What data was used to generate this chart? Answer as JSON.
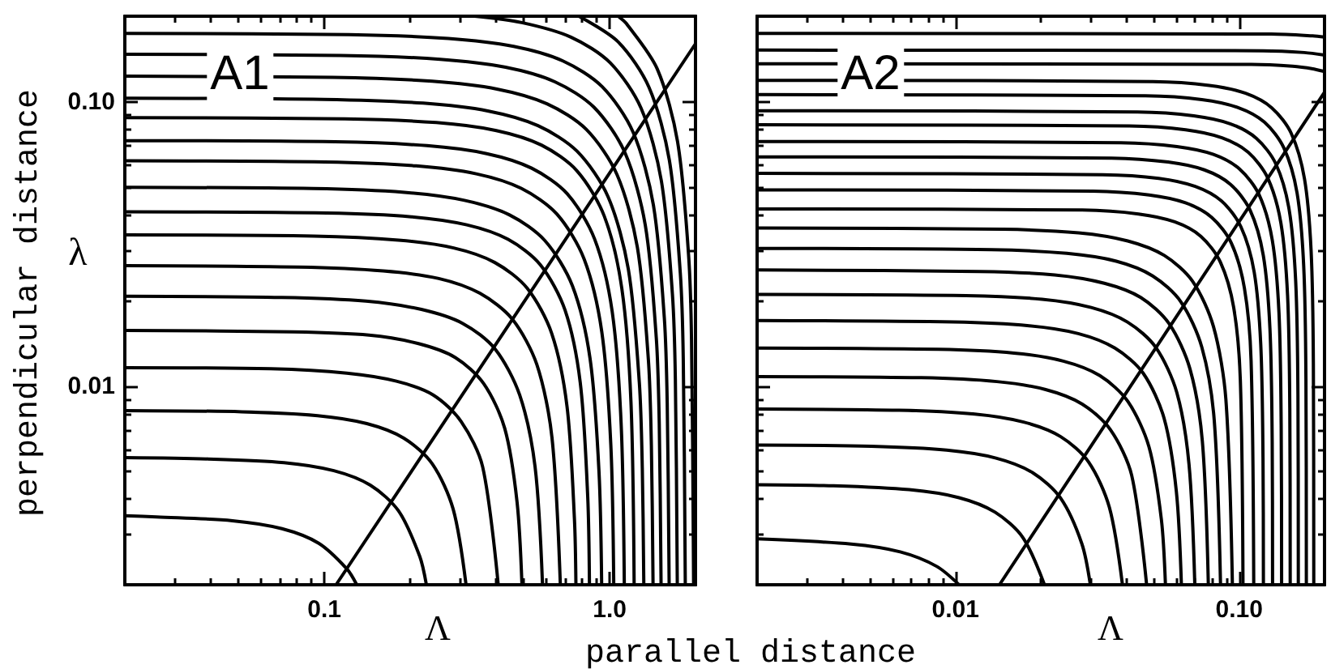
{
  "chart_data": [
    {
      "type": "line",
      "xlabel": "Λ",
      "ylabel": "λ",
      "annotations": [
        "A1",
        "perpendicular distance"
      ],
      "log": "xy",
      "marker": "none",
      "xlim": [
        0.02,
        2
      ],
      "ylim": [
        0.002,
        0.2
      ],
      "xticks": [
        {
          "value": 0.03,
          "label": null
        },
        {
          "value": 0.04,
          "label": null
        },
        {
          "value": 0.05,
          "label": null
        },
        {
          "value": 0.06,
          "label": null
        },
        {
          "value": 0.07,
          "label": null
        },
        {
          "value": 0.08,
          "label": null
        },
        {
          "value": 0.09,
          "label": null
        },
        {
          "value": 0.1,
          "label": "0.1"
        },
        {
          "value": 0.2,
          "label": null
        },
        {
          "value": 0.3,
          "label": null
        },
        {
          "value": 0.4,
          "label": null
        },
        {
          "value": 0.5,
          "label": null
        },
        {
          "value": 0.6,
          "label": null
        },
        {
          "value": 0.7,
          "label": null
        },
        {
          "value": 0.8,
          "label": null
        },
        {
          "value": 0.9,
          "label": null
        },
        {
          "value": 1,
          "label": "1.0"
        }
      ],
      "yticks": [
        {
          "value": 0.003,
          "label": null
        },
        {
          "value": 0.004,
          "label": null
        },
        {
          "value": 0.005,
          "label": null
        },
        {
          "value": 0.006,
          "label": null
        },
        {
          "value": 0.007,
          "label": null
        },
        {
          "value": 0.008,
          "label": null
        },
        {
          "value": 0.009,
          "label": null
        },
        {
          "value": 0.01,
          "label": "0.01"
        },
        {
          "value": 0.02,
          "label": null
        },
        {
          "value": 0.03,
          "label": null
        },
        {
          "value": 0.04,
          "label": null
        },
        {
          "value": 0.05,
          "label": null
        },
        {
          "value": 0.06,
          "label": null
        },
        {
          "value": 0.07,
          "label": null
        },
        {
          "value": 0.08,
          "label": null
        },
        {
          "value": 0.09,
          "label": null
        },
        {
          "value": 0.1,
          "label": "0.10"
        }
      ],
      "series": [
        {
          "color": "#000000",
          "x": [
            0.11,
            2
          ],
          "values": [
            0.002,
            0.16
          ]
        },
        {
          "color": "#000000",
          "x": [
            1.07,
            1.145,
            1.469,
            1.73,
            1.891,
            1.937,
            1.97
          ],
          "values": [
            0.2,
            0.1885,
            0.1305,
            0.0725,
            0.029,
            0.0145,
            0.002
          ]
        },
        {
          "color": "#000000",
          "x": [
            0.78,
            1.071,
            1.374,
            1.619,
            1.769,
            1.812,
            1.842
          ],
          "values": [
            0.2,
            0.1625,
            0.1125,
            0.0625,
            0.025,
            0.0125,
            0.002
          ]
        },
        {
          "color": "#000000",
          "x": [
            0.337,
            0.492,
            0.732,
            1.004,
            1.289,
            1.518,
            1.66,
            1.7,
            1.727
          ],
          "values": [
            0.2,
            0.1899,
            0.1688,
            0.1372,
            0.095,
            0.0528,
            0.0211,
            0.0106,
            0.002
          ]
        },
        {
          "color": "#000000",
          "x": [
            0.02,
            0.122,
            0.272,
            0.461,
            0.686,
            0.941,
            1.208,
            1.423,
            1.555,
            1.592,
            1.617
          ],
          "values": [
            0.174,
            0.1723,
            0.167,
            0.1566,
            0.1392,
            0.1131,
            0.0783,
            0.0435,
            0.0174,
            0.0087,
            0.002
          ]
        },
        {
          "color": "#000000",
          "x": [
            0.02,
            0.114,
            0.255,
            0.432,
            0.643,
            0.882,
            1.132,
            1.334,
            1.458,
            1.493,
            1.515
          ],
          "values": [
            0.147,
            0.1455,
            0.1411,
            0.1323,
            0.1176,
            0.0956,
            0.0662,
            0.0368,
            0.0147,
            0.00735,
            0.002
          ]
        },
        {
          "color": "#000000",
          "x": [
            0.02,
            0.107,
            0.239,
            0.406,
            0.603,
            0.828,
            1.062,
            1.251,
            1.368,
            1.401,
            1.42
          ],
          "values": [
            0.123,
            0.1218,
            0.1181,
            0.1107,
            0.0984,
            0.08,
            0.0554,
            0.0308,
            0.0123,
            0.00615,
            0.002
          ]
        },
        {
          "color": "#000000",
          "x": [
            0.02,
            0.0996,
            0.222,
            0.377,
            0.561,
            0.769,
            0.987,
            1.163,
            1.271,
            1.302,
            1.318
          ],
          "values": [
            0.103,
            0.102,
            0.0989,
            0.0927,
            0.0824,
            0.067,
            0.0464,
            0.0258,
            0.0103,
            0.00515,
            0.002
          ]
        },
        {
          "color": "#000000",
          "x": [
            0.02,
            0.118,
            0.247,
            0.401,
            0.577,
            0.768,
            0.958,
            1.104,
            1.188,
            1.219
          ],
          "values": [
            0.088,
            0.0871,
            0.0845,
            0.0792,
            0.0704,
            0.0572,
            0.0396,
            0.022,
            0.0088,
            0.002
          ]
        },
        {
          "color": "#000000",
          "x": [
            0.02,
            0.109,
            0.229,
            0.371,
            0.533,
            0.71,
            0.886,
            1.021,
            1.098,
            1.126
          ],
          "values": [
            0.073,
            0.0723,
            0.0701,
            0.0657,
            0.0584,
            0.0475,
            0.0329,
            0.0183,
            0.0073,
            0.002
          ]
        },
        {
          "color": "#000000",
          "x": [
            0.02,
            0.1005,
            0.21,
            0.341,
            0.49,
            0.653,
            0.815,
            0.939,
            1.01,
            1.034
          ],
          "values": [
            0.062,
            0.0614,
            0.0595,
            0.0558,
            0.0496,
            0.0403,
            0.0279,
            0.0155,
            0.0062,
            0.002
          ]
        },
        {
          "color": "#000000",
          "x": [
            0.02,
            0.0914,
            0.191,
            0.31,
            0.446,
            0.593,
            0.741,
            0.854,
            0.918,
            0.938
          ],
          "values": [
            0.05,
            0.0495,
            0.048,
            0.045,
            0.04,
            0.0325,
            0.0225,
            0.0125,
            0.005,
            0.002
          ]
        },
        {
          "color": "#000000",
          "x": [
            0.02,
            0.102,
            0.202,
            0.316,
            0.441,
            0.572,
            0.698,
            0.789,
            0.838,
            0.85
          ],
          "values": [
            0.041,
            0.0406,
            0.0394,
            0.0369,
            0.0328,
            0.0267,
            0.0185,
            0.0103,
            0.0041,
            0.002
          ]
        },
        {
          "color": "#000000",
          "x": [
            0.02,
            0.0918,
            0.182,
            0.284,
            0.396,
            0.514,
            0.627,
            0.709,
            0.753,
            0.762
          ],
          "values": [
            0.034,
            0.0337,
            0.0326,
            0.0306,
            0.0272,
            0.0221,
            0.0153,
            0.0085,
            0.0034,
            0.002
          ]
        },
        {
          "color": "#000000",
          "x": [
            0.02,
            0.0813,
            0.161,
            0.252,
            0.351,
            0.456,
            0.556,
            0.628,
            0.672
          ],
          "values": [
            0.0265,
            0.0262,
            0.0254,
            0.0239,
            0.0212,
            0.0172,
            0.0119,
            0.0066,
            0.002
          ]
        },
        {
          "color": "#000000",
          "x": [
            0.02,
            0.0709,
            0.14,
            0.219,
            0.306,
            0.397,
            0.484,
            0.548,
            0.582
          ],
          "values": [
            0.0207,
            0.0205,
            0.0199,
            0.0186,
            0.0166,
            0.0135,
            0.0093,
            0.0052,
            0.002
          ]
        },
        {
          "color": "#000000",
          "x": [
            0.02,
            0.0778,
            0.1435,
            0.214,
            0.288,
            0.362,
            0.429,
            0.474,
            0.493
          ],
          "values": [
            0.0157,
            0.0155,
            0.0151,
            0.0141,
            0.0126,
            0.0102,
            0.0071,
            0.0039,
            0.002
          ]
        },
        {
          "color": "#000000",
          "x": [
            0.02,
            0.065,
            0.12,
            0.179,
            0.241,
            0.302,
            0.359,
            0.407
          ],
          "values": [
            0.0116,
            0.0115,
            0.0111,
            0.0104,
            0.0093,
            0.0075,
            0.0052,
            0.002
          ]
        },
        {
          "color": "#000000",
          "x": [
            0.02,
            0.0514,
            0.0948,
            0.141,
            0.19,
            0.239,
            0.283,
            0.314
          ],
          "values": [
            0.0082,
            0.00812,
            0.00787,
            0.00738,
            0.00656,
            0.00533,
            0.00369,
            0.002
          ]
        },
        {
          "color": "#000000",
          "x": [
            0.02,
            0.0392,
            0.0723,
            0.108,
            0.145,
            0.182,
            0.216,
            0.228
          ],
          "values": [
            0.0056,
            0.00554,
            0.00538,
            0.00504,
            0.00448,
            0.00364,
            0.00252,
            0.002
          ]
        },
        {
          "color": "#000000",
          "x": [
            0.02,
            0.0258,
            0.0477,
            0.0711,
            0.0956,
            0.12,
            0.13
          ],
          "values": [
            0.0035,
            0.003465,
            0.00336,
            0.00315,
            0.0028,
            0.002275,
            0.002
          ]
        }
      ]
    },
    {
      "type": "line",
      "xlabel": "Λ",
      "annotations": [
        "A2",
        "parallel distance"
      ],
      "log": "xy",
      "marker": "none",
      "tick_labels": "x",
      "xlim": [
        0.002,
        0.2
      ],
      "ylim": [
        0.002,
        0.2
      ],
      "xticks": [
        {
          "value": 0.003,
          "label": null
        },
        {
          "value": 0.004,
          "label": null
        },
        {
          "value": 0.005,
          "label": null
        },
        {
          "value": 0.006,
          "label": null
        },
        {
          "value": 0.007,
          "label": null
        },
        {
          "value": 0.008,
          "label": null
        },
        {
          "value": 0.009,
          "label": null
        },
        {
          "value": 0.01,
          "label": "0.01"
        },
        {
          "value": 0.02,
          "label": null
        },
        {
          "value": 0.03,
          "label": null
        },
        {
          "value": 0.04,
          "label": null
        },
        {
          "value": 0.05,
          "label": null
        },
        {
          "value": 0.06,
          "label": null
        },
        {
          "value": 0.07,
          "label": null
        },
        {
          "value": 0.08,
          "label": null
        },
        {
          "value": 0.09,
          "label": null
        },
        {
          "value": 0.1,
          "label": "0.10"
        }
      ],
      "yticks": [
        {
          "value": 0.003,
          "label": null
        },
        {
          "value": 0.004,
          "label": null
        },
        {
          "value": 0.005,
          "label": null
        },
        {
          "value": 0.006,
          "label": null
        },
        {
          "value": 0.007,
          "label": null
        },
        {
          "value": 0.008,
          "label": null
        },
        {
          "value": 0.009,
          "label": null
        },
        0.01,
        {
          "value": 0.02,
          "label": null
        },
        {
          "value": 0.03,
          "label": null
        },
        {
          "value": 0.04,
          "label": null
        },
        {
          "value": 0.05,
          "label": null
        },
        {
          "value": 0.06,
          "label": null
        },
        {
          "value": 0.07,
          "label": null
        },
        {
          "value": 0.08,
          "label": null
        },
        {
          "value": 0.09,
          "label": null
        },
        0.1
      ],
      "series": [
        {
          "color": "#000000",
          "x": [
            0.0143,
            0.2
          ],
          "values": [
            0.002,
            0.108
          ]
        },
        {
          "color": "#000000",
          "x": [
            0.002,
            0.1299,
            0.1816,
            0.2
          ],
          "values": [
            0.174,
            0.1731,
            0.1705,
            0.1688
          ]
        },
        {
          "color": "#000000",
          "x": [
            0.002,
            0.1213,
            0.1697,
            0.2
          ],
          "values": [
            0.152,
            0.1512,
            0.149,
            0.1459
          ]
        },
        {
          "color": "#000000",
          "x": [
            0.002,
            0.1104,
            0.1543,
            0.1819,
            0.2
          ],
          "values": [
            0.136,
            0.1353,
            0.1333,
            0.1306,
            0.1278
          ]
        },
        {
          "color": "#000000",
          "x": [
            0.002,
            0.0497,
            0.0785,
            0.1054,
            0.1304,
            0.1527,
            0.17,
            0.1794,
            0.1827,
            0.1833
          ],
          "values": [
            0.119,
            0.1178,
            0.1142,
            0.1071,
            0.0952,
            0.0774,
            0.0536,
            0.0298,
            0.0119,
            0.002
          ]
        },
        {
          "color": "#000000",
          "x": [
            0.002,
            0.0468,
            0.0739,
            0.0992,
            0.1228,
            0.1437,
            0.1601,
            0.1689,
            0.172,
            0.1726
          ],
          "values": [
            0.106,
            0.1049,
            0.1018,
            0.0954,
            0.0848,
            0.0689,
            0.0477,
            0.0265,
            0.0106,
            0.002
          ]
        },
        {
          "color": "#000000",
          "x": [
            0.002,
            0.0438,
            0.0692,
            0.093,
            0.115,
            0.1347,
            0.15,
            0.1583,
            0.1612,
            0.1617
          ],
          "values": [
            0.093,
            0.0921,
            0.0893,
            0.0837,
            0.0744,
            0.0605,
            0.0419,
            0.0233,
            0.0093,
            0.002
          ]
        },
        {
          "color": "#000000",
          "x": [
            0.002,
            0.041,
            0.0648,
            0.087,
            0.1077,
            0.1261,
            0.1404,
            0.1482,
            0.1509,
            0.1514
          ],
          "values": [
            0.083,
            0.0822,
            0.0797,
            0.0747,
            0.0664,
            0.054,
            0.0374,
            0.0208,
            0.0083,
            0.002
          ]
        },
        {
          "color": "#000000",
          "x": [
            0.002,
            0.0383,
            0.0604,
            0.0812,
            0.1004,
            0.1176,
            0.1309,
            0.1382,
            0.1407,
            0.1412
          ],
          "values": [
            0.0725,
            0.0718,
            0.0696,
            0.0653,
            0.058,
            0.0471,
            0.0326,
            0.0181,
            0.00725,
            0.002
          ]
        },
        {
          "color": "#000000",
          "x": [
            0.002,
            0.0355,
            0.0562,
            0.0754,
            0.0933,
            0.1093,
            0.1217,
            0.1284,
            0.1308,
            0.1312
          ],
          "values": [
            0.064,
            0.0634,
            0.0614,
            0.0576,
            0.0512,
            0.0416,
            0.0288,
            0.016,
            0.0064,
            0.002
          ]
        },
        {
          "color": "#000000",
          "x": [
            0.002,
            0.033,
            0.0521,
            0.07,
            0.0866,
            0.1014,
            0.113,
            0.1192,
            0.1214,
            0.1218
          ],
          "values": [
            0.056,
            0.0554,
            0.0538,
            0.0504,
            0.0448,
            0.0364,
            0.0252,
            0.014,
            0.0056,
            0.002
          ]
        },
        {
          "color": "#000000",
          "x": [
            0.002,
            0.0305,
            0.0482,
            0.0647,
            0.0801,
            0.0938,
            0.1044,
            0.1102,
            0.1126
          ],
          "values": [
            0.049,
            0.0485,
            0.047,
            0.0441,
            0.0392,
            0.0319,
            0.0221,
            0.0123,
            0.002
          ]
        },
        {
          "color": "#000000",
          "x": [
            0.002,
            0.028,
            0.0442,
            0.0593,
            0.0734,
            0.0859,
            0.0957,
            0.101,
            0.1032
          ],
          "values": [
            0.042,
            0.0416,
            0.0403,
            0.0378,
            0.0336,
            0.0273,
            0.0189,
            0.0105,
            0.002
          ]
        },
        {
          "color": "#000000",
          "x": [
            0.002,
            0.0147,
            0.0272,
            0.0405,
            0.0545,
            0.0685,
            0.0812,
            0.0898,
            0.0947
          ],
          "values": [
            0.036,
            0.0356,
            0.0346,
            0.0324,
            0.0288,
            0.0234,
            0.0162,
            0.009,
            0.002
          ]
        },
        {
          "color": "#000000",
          "x": [
            0.002,
            0.0134,
            0.0247,
            0.0369,
            0.0496,
            0.0623,
            0.0739,
            0.0817,
            0.086
          ],
          "values": [
            0.0305,
            0.0302,
            0.0293,
            0.0275,
            0.0244,
            0.0198,
            0.0137,
            0.0076,
            0.002
          ]
        },
        {
          "color": "#000000",
          "x": [
            0.002,
            0.0122,
            0.0224,
            0.0335,
            0.045,
            0.0566,
            0.0671,
            0.0742,
            0.0779
          ],
          "values": [
            0.0256,
            0.0253,
            0.0246,
            0.023,
            0.0205,
            0.0166,
            0.0115,
            0.0064,
            0.002
          ]
        },
        {
          "color": "#000000",
          "x": [
            0.002,
            0.0109,
            0.0202,
            0.0301,
            0.0404,
            0.0508,
            0.0603,
            0.0666,
            0.0698
          ],
          "values": [
            0.021,
            0.0208,
            0.0202,
            0.0189,
            0.0168,
            0.0137,
            0.0095,
            0.0053,
            0.002
          ]
        },
        {
          "color": "#000000",
          "x": [
            0.002,
            0.00986,
            0.0182,
            0.0271,
            0.0365,
            0.0459,
            0.0544,
            0.0601,
            0.0626
          ],
          "values": [
            0.017,
            0.0168,
            0.0163,
            0.0153,
            0.0136,
            0.0111,
            0.0077,
            0.00425,
            0.002
          ]
        },
        {
          "color": "#000000",
          "x": [
            0.002,
            0.00871,
            0.0161,
            0.024,
            0.0323,
            0.0405,
            0.0481,
            0.0532,
            0.055
          ],
          "values": [
            0.0136,
            0.01346,
            0.01306,
            0.01224,
            0.01088,
            0.00884,
            0.00612,
            0.0034,
            0.002
          ]
        },
        {
          "color": "#000000",
          "x": [
            0.002,
            0.00757,
            0.014,
            0.0208,
            0.028,
            0.0352,
            0.0418,
            0.0472
          ],
          "values": [
            0.0108,
            0.0107,
            0.01037,
            0.00972,
            0.00864,
            0.00702,
            0.00486,
            0.002
          ]
        },
        {
          "color": "#000000",
          "x": [
            0.002,
            0.00633,
            0.0117,
            0.0174,
            0.0235,
            0.0295,
            0.0349,
            0.0388
          ],
          "values": [
            0.0083,
            0.00822,
            0.00797,
            0.00747,
            0.00664,
            0.0054,
            0.00374,
            0.002
          ]
        },
        {
          "color": "#000000",
          "x": [
            0.002,
            0.00505,
            0.00932,
            0.0139,
            0.0187,
            0.0235,
            0.0279,
            0.0299
          ],
          "values": [
            0.0062,
            0.00614,
            0.00595,
            0.00558,
            0.00496,
            0.00403,
            0.00279,
            0.002
          ]
        },
        {
          "color": "#000000",
          "x": [
            0.002,
            0.00372,
            0.00687,
            0.0103,
            0.0138,
            0.0173,
            0.0206
          ],
          "values": [
            0.0045,
            0.00446,
            0.00432,
            0.00405,
            0.0036,
            0.00293,
            0.002
          ]
        },
        {
          "color": "#000000",
          "x": [
            0.002,
            0.00429,
            0.00639,
            0.0086,
            0.0103
          ],
          "values": [
            0.0029,
            0.00278,
            0.00261,
            0.00232,
            0.002
          ]
        }
      ]
    }
  ]
}
